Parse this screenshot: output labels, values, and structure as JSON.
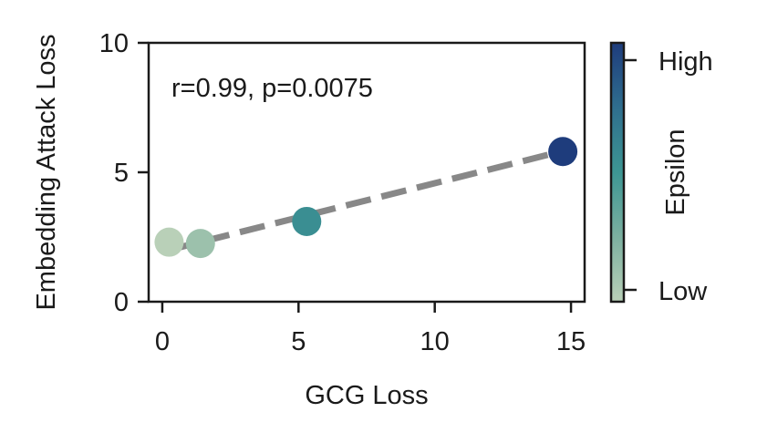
{
  "chart_data": {
    "type": "scatter",
    "title": "",
    "xlabel": "GCG Loss",
    "ylabel": "Embedding Attack Loss",
    "xlim": [
      -0.5,
      15.5
    ],
    "ylim": [
      0,
      10
    ],
    "xticks": [
      0,
      5,
      10,
      15
    ],
    "yticks": [
      0,
      5,
      10
    ],
    "grid": false,
    "legend": "none",
    "annotation": "r=0.99, p=0.0075",
    "points": [
      {
        "x": 0.25,
        "y": 2.3,
        "epsilon": 0.0
      },
      {
        "x": 1.4,
        "y": 2.25,
        "epsilon": 0.12
      },
      {
        "x": 5.3,
        "y": 3.1,
        "epsilon": 0.55
      },
      {
        "x": 14.7,
        "y": 5.8,
        "epsilon": 1.0
      }
    ],
    "trendline": {
      "x": [
        0.25,
        14.7
      ],
      "y": [
        2.0,
        5.82
      ],
      "style": "dashed",
      "color": "#888888"
    },
    "colorbar": {
      "label": "Epsilon",
      "tick_labels": [
        "High",
        "Low"
      ],
      "colors": [
        "#1e3c7c",
        "#2f6e8e",
        "#3d9693",
        "#7cb0a0",
        "#b9d0b8"
      ]
    }
  }
}
